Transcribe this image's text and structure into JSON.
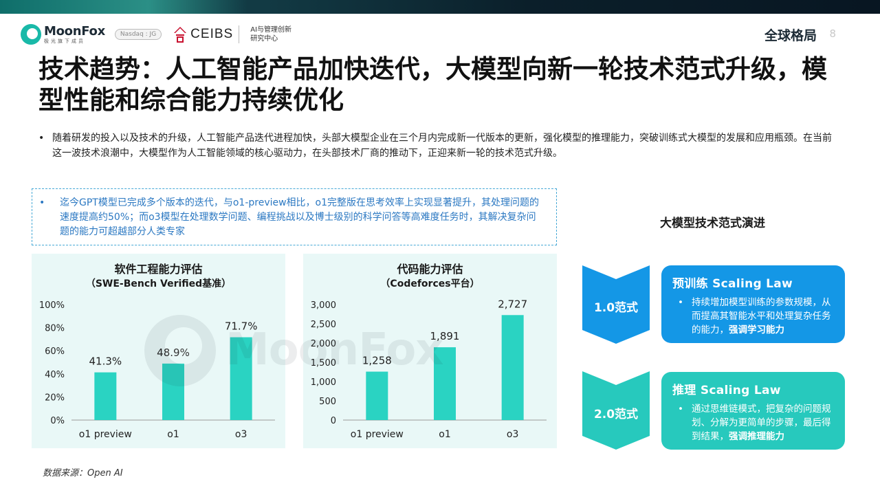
{
  "header": {
    "logo_name": "MoonFox",
    "logo_sub": "极光旗下成员",
    "nasdaq": "Nasdaq : JG",
    "ceibs_name": "CEIBS",
    "ceibs_sub_1": "AI与管理创新",
    "ceibs_sub_2": "研究中心",
    "section": "全球格局",
    "page": "8"
  },
  "title": "技术趋势：人工智能产品加快迭代，大模型向新一轮技术范式升级，模型性能和综合能力持续优化",
  "bullet_main": "随着研发的投入以及技术的升级，人工智能产品迭代进程加快，头部大模型企业在三个月内完成新一代版本的更新，强化模型的推理能力，突破训练式大模型的发展和应用瓶颈。在当前这一波技术浪潮中，大模型作为人工智能领域的核心驱动力，在头部技术厂商的推动下，正迎来新一轮的技术范式升级。",
  "callout": "迄今GPT模型已完成多个版本的迭代，与o1-preview相比，o1完整版在思考效率上实现显著提升，其处理问题的速度提高约50%；而o3模型在处理数学问题、编程挑战以及博士级别的科学问答等高难度任务时，其解决复杂问题的能力可超越部分人类专家",
  "chart_data": [
    {
      "type": "bar",
      "title": "软件工程能力评估",
      "subtitle": "（SWE-Bench Verified基准）",
      "categories": [
        "o1 preview",
        "o1",
        "o3"
      ],
      "values": [
        41.3,
        48.9,
        71.7
      ],
      "value_labels": [
        "41.3%",
        "48.9%",
        "71.7%"
      ],
      "y_ticks": [
        0,
        20,
        40,
        60,
        80,
        100
      ],
      "y_tick_labels": [
        "0%",
        "20%",
        "40%",
        "60%",
        "80%",
        "100%"
      ],
      "ylim": [
        0,
        100
      ],
      "grid": false,
      "bar_color": "#2ad3c2"
    },
    {
      "type": "bar",
      "title": "代码能力评估",
      "subtitle": "（Codeforces平台）",
      "categories": [
        "o1 preview",
        "o1",
        "o3"
      ],
      "values": [
        1258,
        1891,
        2727
      ],
      "value_labels": [
        "1,258",
        "1,891",
        "2,727"
      ],
      "y_ticks": [
        0,
        500,
        1000,
        1500,
        2000,
        2500,
        3000
      ],
      "y_tick_labels": [
        "0",
        "500",
        "1,000",
        "1,500",
        "2,000",
        "2,500",
        "3,000"
      ],
      "ylim": [
        0,
        3000
      ],
      "grid": false,
      "bar_color": "#2ad3c2"
    }
  ],
  "paradigm_flow": {
    "title": "大模型技术范式演进",
    "steps": [
      {
        "label": "1.0范式",
        "heading": "预训练 Scaling Law",
        "body": "持续增加模型训练的参数规模，从而提高其智能水平和处理复杂任务的能力，",
        "emphasis": "强调学习能力",
        "color": "#1497e6"
      },
      {
        "label": "2.0范式",
        "heading": "推理 Scaling Law",
        "body": "通过思维链模式，把复杂的问题规划、分解为更简单的步骤，最后得到结果，",
        "emphasis": "强调推理能力",
        "color": "#27c9bd"
      }
    ]
  },
  "source": "数据来源：Open AI",
  "watermark_text": "MoonFox"
}
